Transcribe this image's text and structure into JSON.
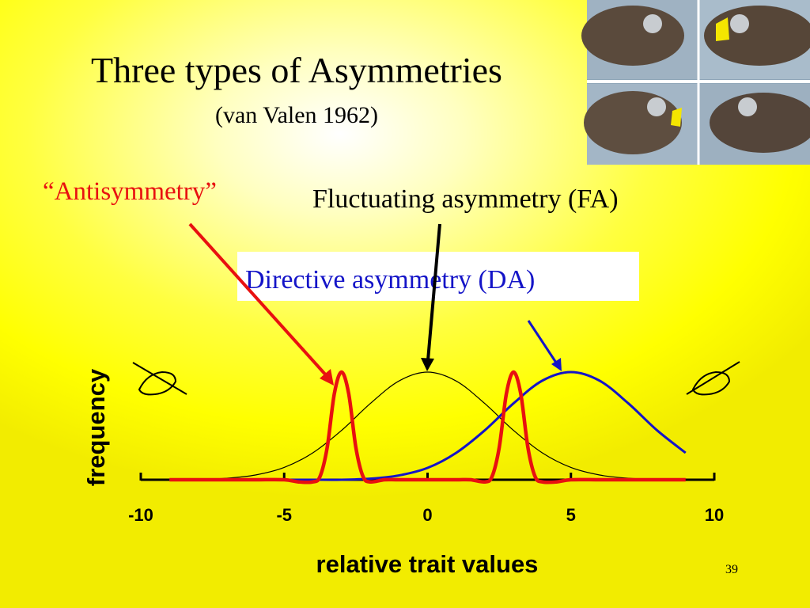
{
  "title": "Three types of Asymmetries",
  "subtitle": "(van Valen 1962)",
  "page_number": 39,
  "chart_data": {
    "type": "line",
    "xlabel": "relative trait values",
    "ylabel": "frequency",
    "xlim": [
      -10,
      10
    ],
    "xticks": [
      -10,
      -5,
      0,
      5,
      10
    ],
    "ylim": [
      0,
      1
    ],
    "series": [
      {
        "name": "Fluctuating asymmetry (FA)",
        "color": "#000000",
        "x": [
          -10,
          -9,
          -8,
          -7,
          -6,
          -5,
          -4,
          -3,
          -2,
          -1,
          0,
          1,
          2,
          3,
          4,
          5,
          6,
          7,
          8,
          9,
          10
        ],
        "values": [
          0,
          0.001,
          0.004,
          0.014,
          0.044,
          0.114,
          0.25,
          0.458,
          0.707,
          0.917,
          1,
          0.917,
          0.707,
          0.458,
          0.25,
          0.114,
          0.044,
          0.014,
          0.004,
          0.001,
          0
        ]
      },
      {
        "name": "Directive asymmetry (DA)",
        "color": "#1414c8",
        "x": [
          -9,
          -8,
          -7,
          -6,
          -5,
          -4,
          -3,
          -2,
          -1,
          0,
          1,
          2,
          3,
          4,
          5,
          6,
          7,
          8,
          9
        ],
        "values": [
          0,
          0,
          0,
          0,
          0,
          0,
          0,
          0.01,
          0.04,
          0.11,
          0.25,
          0.46,
          0.71,
          0.92,
          1,
          0.92,
          0.71,
          0.46,
          0.25
        ]
      },
      {
        "name": "“Antisymmetry”",
        "color": "#e81010",
        "x": [
          -9,
          -8,
          -7,
          -6,
          -5,
          -4.5,
          -4,
          -3.75,
          -3.5,
          -3.25,
          -3,
          -2.75,
          -2.5,
          -2.25,
          -2,
          -1.5,
          -1,
          0,
          1,
          1.5,
          2,
          2.25,
          2.5,
          2.75,
          3,
          3.25,
          3.5,
          3.75,
          4,
          4.5,
          5,
          6,
          7,
          8,
          9
        ],
        "values": [
          0,
          0,
          0,
          0,
          0,
          -0.02,
          -0.02,
          0.03,
          0.3,
          0.8,
          1,
          0.8,
          0.3,
          0.03,
          -0.02,
          0,
          0,
          0,
          0,
          0,
          -0.02,
          0.03,
          0.3,
          0.8,
          1,
          0.8,
          0.3,
          0.03,
          -0.02,
          -0.02,
          0,
          0,
          0,
          0,
          0
        ]
      }
    ]
  }
}
